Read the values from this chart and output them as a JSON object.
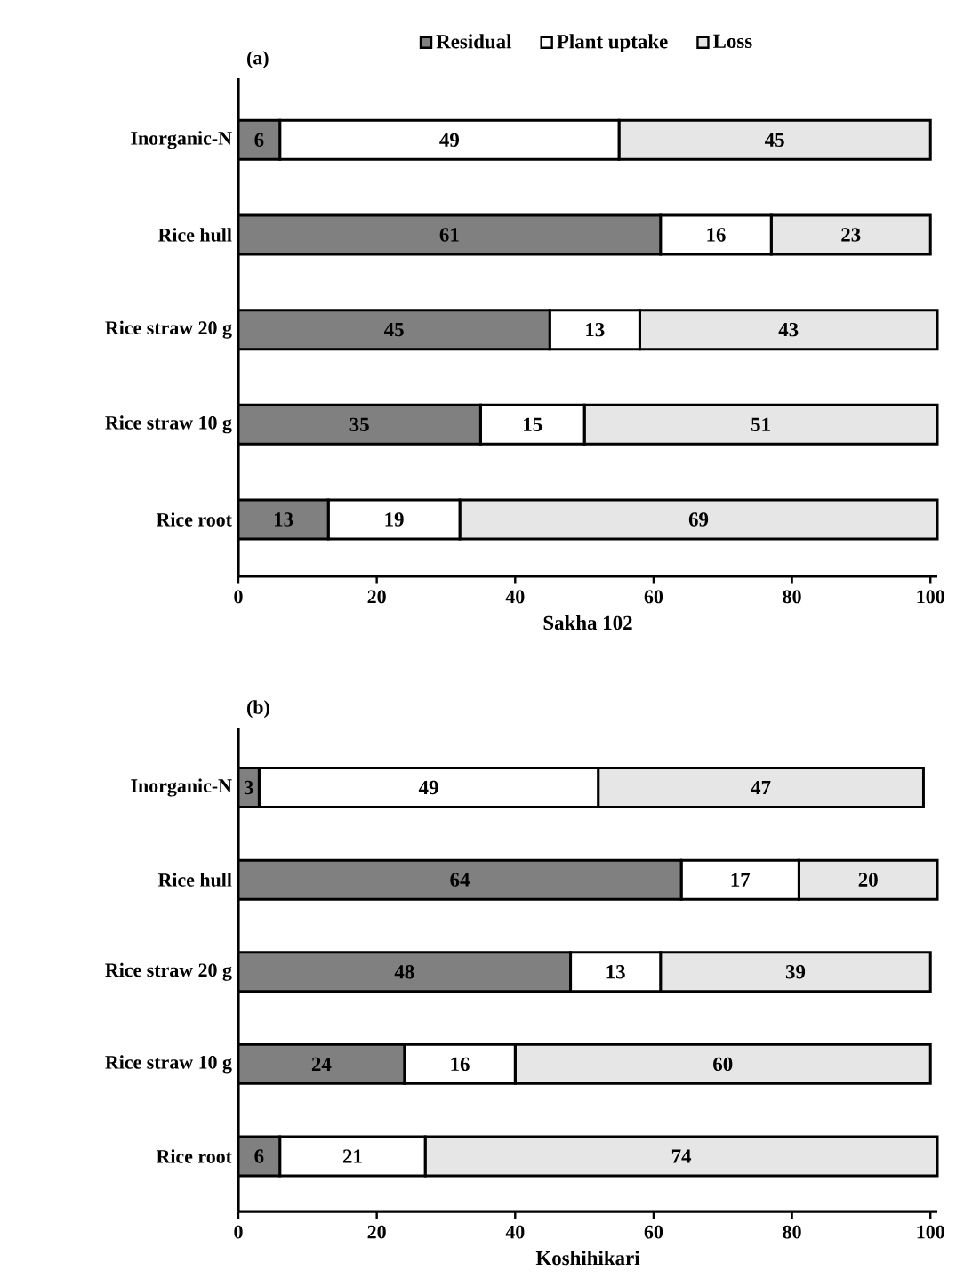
{
  "chart_data": [
    {
      "type": "bar",
      "orientation": "horizontal",
      "stacked": true,
      "title": "(a)",
      "xlabel": "Sakha 102",
      "categories": [
        "Inorganic-N",
        "Rice hull",
        "Rice straw 20 g",
        "Rice straw 10 g",
        "Rice root"
      ],
      "series": [
        {
          "name": "Residual",
          "color": "#808080",
          "values": [
            6,
            61,
            45,
            35,
            13
          ]
        },
        {
          "name": "Plant uptake",
          "color": "#ffffff",
          "values": [
            49,
            16,
            13,
            15,
            19
          ]
        },
        {
          "name": "Loss",
          "color": "#e6e6e6",
          "values": [
            45,
            23,
            43,
            51,
            69
          ]
        }
      ],
      "xlim": [
        0,
        101
      ],
      "xticks": [
        0,
        20,
        40,
        60,
        80,
        100
      ],
      "data_labels": true,
      "legend": "top",
      "grid": false
    },
    {
      "type": "bar",
      "orientation": "horizontal",
      "stacked": true,
      "title": "(b)",
      "xlabel": "Koshihikari",
      "categories": [
        "Inorganic-N",
        "Rice hull",
        "Rice straw 20 g",
        "Rice straw 10 g",
        "Rice root"
      ],
      "series": [
        {
          "color": "#808080",
          "values": [
            3,
            64,
            48,
            24,
            6
          ]
        },
        {
          "color": "#ffffff",
          "values": [
            49,
            17,
            13,
            16,
            21
          ]
        },
        {
          "color": "#e6e6e6",
          "values": [
            47,
            20,
            39,
            60,
            74
          ]
        }
      ],
      "xlim": [
        0,
        101
      ],
      "xticks": [
        0,
        20,
        40,
        60,
        80,
        100
      ],
      "data_labels": true,
      "legend": false,
      "grid": false
    }
  ]
}
